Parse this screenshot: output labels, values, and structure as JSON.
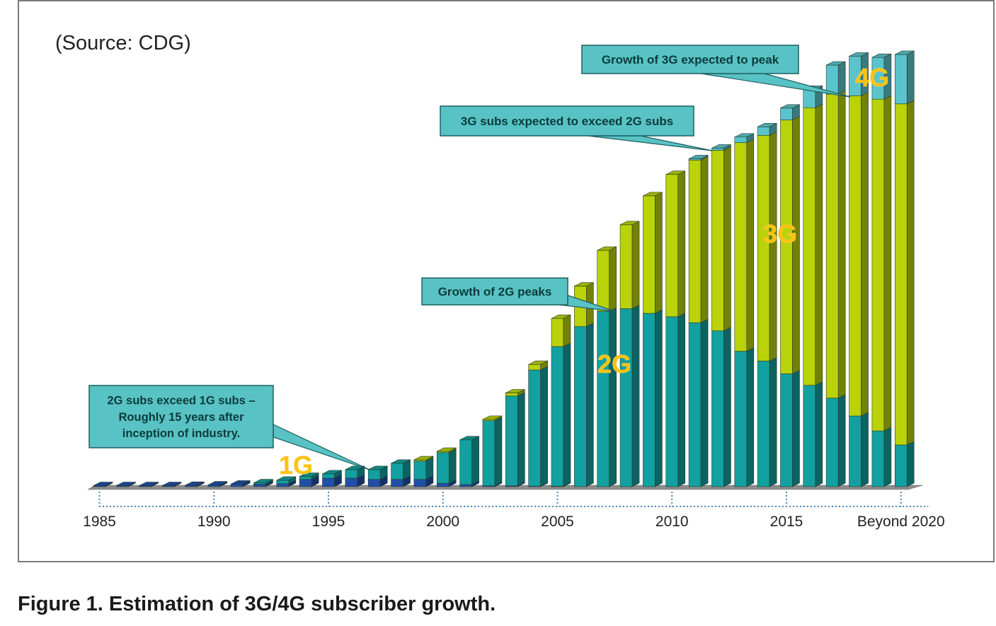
{
  "source_label": "(Source: CDG)",
  "caption": "Figure 1. Estimation of 3G/4G subscriber growth.",
  "colors": {
    "1G": "#1f4fa8",
    "2G": "#12a0a0",
    "3G": "#b9d20a",
    "4G": "#5ac4cc",
    "annotation_fill": "#58c2c4",
    "annotation_text": "#0c3b3b",
    "generation_label": "#ffc20e",
    "floor": "#8c8c8c",
    "axis_dots": "#4a86b8"
  },
  "chart_data": {
    "type": "bar",
    "stacked": true,
    "style": "3d",
    "title": "",
    "xlabel": "",
    "ylabel": "",
    "units": "relative subscribers (no y-axis scale shown; estimated, 0-100)",
    "ylim": [
      0,
      100
    ],
    "grid": false,
    "legend": "none (generation labels drawn inside chart)",
    "categories": [
      "1985",
      "1986",
      "1987",
      "1988",
      "1989",
      "1990",
      "1991",
      "1992",
      "1993",
      "1994",
      "1995",
      "1996",
      "1997",
      "1998",
      "1999",
      "2000",
      "2001",
      "2002",
      "2003",
      "2004",
      "2005",
      "2006",
      "2007",
      "2008",
      "2009",
      "2010",
      "2011",
      "2012",
      "2013",
      "2014",
      "2015",
      "2016",
      "2017",
      "2018",
      "2019",
      "Beyond 2020"
    ],
    "tick_labels": [
      {
        "category": "1985",
        "label": "1985"
      },
      {
        "category": "1990",
        "label": "1990"
      },
      {
        "category": "1995",
        "label": "1995"
      },
      {
        "category": "2000",
        "label": "2000"
      },
      {
        "category": "2005",
        "label": "2005"
      },
      {
        "category": "2010",
        "label": "2010"
      },
      {
        "category": "2015",
        "label": "2015"
      },
      {
        "category": "Beyond 2020",
        "label": "Beyond 2020"
      }
    ],
    "series": [
      {
        "name": "1G",
        "values": [
          0.2,
          0.2,
          0.2,
          0.2,
          0.3,
          0.4,
          0.6,
          0.6,
          0.7,
          1.7,
          2.0,
          2.0,
          1.7,
          1.7,
          1.7,
          0.8,
          0.5,
          0.2,
          0.2,
          0.1,
          0.1,
          0,
          0,
          0,
          0,
          0,
          0,
          0,
          0,
          0,
          0,
          0,
          0,
          0,
          0,
          0
        ]
      },
      {
        "name": "2G",
        "values": [
          0,
          0,
          0,
          0,
          0,
          0,
          0,
          0.3,
          0.8,
          0.7,
          1.0,
          2.0,
          2.3,
          3.8,
          4.3,
          7.2,
          10.5,
          15.3,
          21.1,
          27.3,
          32.8,
          37.6,
          41.2,
          41.8,
          40.7,
          39.9,
          38.5,
          36.6,
          31.8,
          29.5,
          26.5,
          23.8,
          20.8,
          16.6,
          13.1,
          9.8
        ]
      },
      {
        "name": "3G",
        "values": [
          0,
          0,
          0,
          0,
          0,
          0,
          0,
          0,
          0,
          0,
          0,
          0,
          0,
          0,
          0.3,
          0.3,
          0,
          0.3,
          0.7,
          1.3,
          6.6,
          9.5,
          14.3,
          19.7,
          27.6,
          33.4,
          38.2,
          42.4,
          49.0,
          53.0,
          59.6,
          65.2,
          71.4,
          75.2,
          77.9,
          80.1
        ]
      },
      {
        "name": "4G",
        "values": [
          0,
          0,
          0,
          0,
          0,
          0,
          0,
          0,
          0,
          0,
          0,
          0,
          0,
          0,
          0,
          0,
          0,
          0,
          0,
          0,
          0,
          0,
          0,
          0,
          0,
          0,
          0.3,
          0.5,
          1.3,
          2.0,
          2.8,
          4.3,
          6.8,
          9.3,
          9.8,
          11.6
        ]
      }
    ],
    "annotations": [
      {
        "id": "2g-exceed-1g",
        "lines": [
          "2G subs exceed 1G subs –",
          "Roughly 15 years after",
          "inception of industry."
        ],
        "points_to": "1997"
      },
      {
        "id": "2g-peaks",
        "lines": [
          "Growth of 2G peaks"
        ],
        "points_to": "2008"
      },
      {
        "id": "3g-exceed-2g",
        "lines": [
          "3G subs expected to exceed 2G subs"
        ],
        "points_to": "2012"
      },
      {
        "id": "3g-peak",
        "lines": [
          "Growth of 3G expected to peak"
        ],
        "points_to": "2018"
      }
    ],
    "generation_labels": [
      {
        "text": "1G",
        "near": "1994"
      },
      {
        "text": "2G",
        "near": "2008"
      },
      {
        "text": "3G",
        "near": "2015"
      },
      {
        "text": "4G",
        "near": "2018"
      }
    ]
  }
}
